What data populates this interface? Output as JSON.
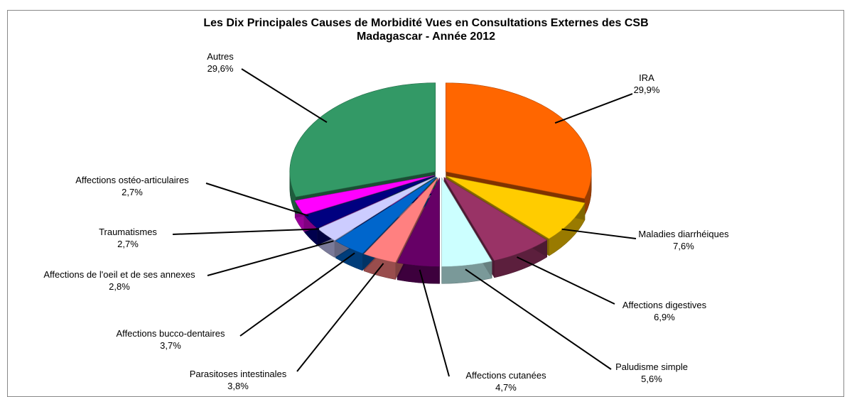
{
  "chart_data": {
    "type": "pie",
    "title": "Les Dix Principales Causes de Morbidité Vues en Consultations Externes des CSB",
    "subtitle": "Madagascar - Année 2012",
    "categories": [
      "IRA",
      "Maladies diarrhéiques",
      "Affections digestives",
      "Paludisme simple",
      "Affections cutanées",
      "Parasitoses intestinales",
      "Affections bucco-dentaires",
      "Affections de l'oeil et de ses annexes",
      "Traumatismes",
      "Affections ostéo-articulaires",
      "Autres"
    ],
    "values": [
      29.9,
      7.6,
      6.9,
      5.6,
      4.7,
      3.8,
      3.7,
      2.8,
      2.7,
      2.7,
      29.6
    ],
    "value_labels": [
      "29,9%",
      "7,6%",
      "6,9%",
      "5,6%",
      "4,7%",
      "3,8%",
      "3,7%",
      "2,8%",
      "2,7%",
      "2,7%",
      "29,6%"
    ],
    "colors": [
      "#ff6600",
      "#ffcc00",
      "#993366",
      "#ccffff",
      "#660066",
      "#ff8080",
      "#0066cc",
      "#ccccff",
      "#000080",
      "#ff00ff",
      "#339966"
    ]
  }
}
